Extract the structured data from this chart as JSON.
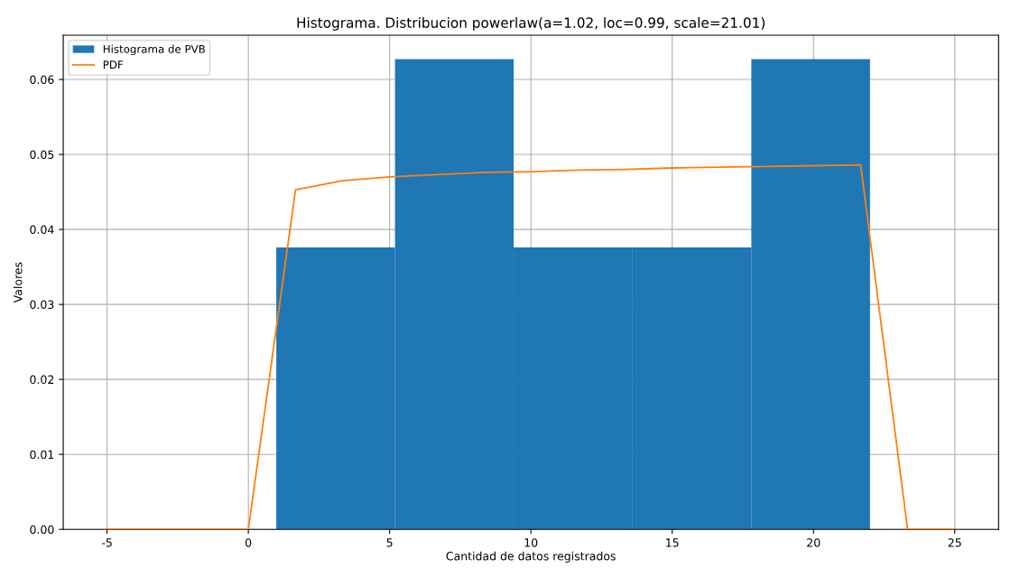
{
  "chart_data": {
    "type": "histogram",
    "title": "Histograma. Distribucion powerlaw(a=1.02, loc=0.99, scale=21.01)",
    "xlabel": "Cantidad de datos registrados",
    "ylabel": "Valores",
    "series": [
      {
        "name": "Histograma de PVB",
        "color": "#1f77b4",
        "bins": [
          0.99,
          5.19,
          9.39,
          13.6,
          17.8,
          22.0
        ],
        "values": [
          0.0376,
          0.0627,
          0.0376,
          0.0376,
          0.0627
        ]
      },
      {
        "name": "PDF",
        "type": "line",
        "color": "#ff7f0e",
        "x": [
          -5,
          -3.33,
          -1.67,
          0,
          1.67,
          3.33,
          5,
          6.67,
          8.33,
          10,
          11.67,
          13.33,
          15,
          16.67,
          18.33,
          20,
          21.67,
          23.33,
          25
        ],
        "values": [
          0,
          0,
          0,
          0,
          0.0453,
          0.0465,
          0.047,
          0.0473,
          0.0476,
          0.0477,
          0.0479,
          0.048,
          0.0482,
          0.0483,
          0.0484,
          0.0485,
          0.0486,
          0,
          0
        ]
      }
    ],
    "xlim": [
      -6.55,
      26.55
    ],
    "xticks": [
      -5,
      0,
      5,
      10,
      15,
      20,
      25
    ],
    "ylim": [
      0,
      0.0659
    ],
    "yticks": [
      {
        "value": 0,
        "label": "0.00"
      },
      {
        "value": 0.01,
        "label": "0.01"
      },
      {
        "value": 0.02,
        "label": "0.02"
      },
      {
        "value": 0.03,
        "label": "0.03"
      },
      {
        "value": 0.04,
        "label": "0.04"
      },
      {
        "value": 0.05,
        "label": "0.05"
      },
      {
        "value": 0.06,
        "label": "0.06"
      }
    ],
    "grid": true,
    "legend": "top left"
  }
}
